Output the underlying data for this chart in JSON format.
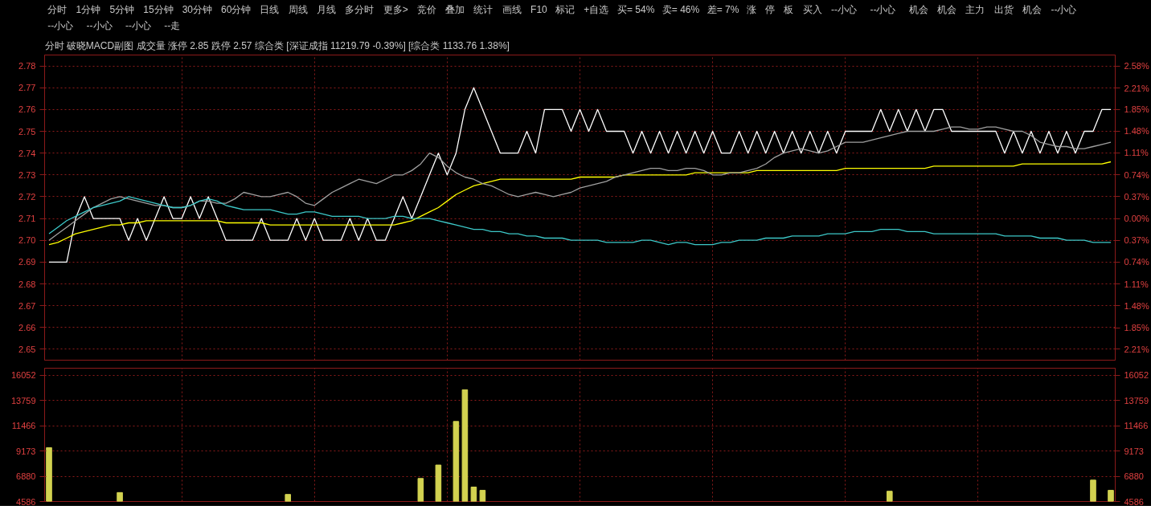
{
  "chart_data": [
    {
      "type": "line",
      "title": "分时 破晓MACD副图 成交量 涨停 2.85 跌停 2.57 综合类 [深证成指 11219.79 -0.39%] [综合类 1133.76 1.38%]",
      "annotations": [
        "分时",
        "1分钟",
        "5分钟",
        "15分钟",
        "30分钟",
        "60分钟",
        "日线",
        "周线",
        "月线",
        "多分时",
        "更多>",
        "竞价",
        "叠加",
        "统计",
        "画线",
        "F10",
        "标记",
        "+自选",
        "买= 54%",
        "卖= 46%",
        "差= 7%",
        "涨",
        "停",
        "板",
        "买入",
        "--小心",
        "--小心",
        "机会",
        "机会",
        "主力",
        "出货",
        "机会",
        "--小心",
        "--小心",
        "--小心",
        "--小心",
        "--走"
      ],
      "categories": [
        null,
        null,
        null,
        null,
        null,
        null,
        null,
        null,
        null,
        null,
        null,
        null,
        null,
        null,
        null,
        null,
        null,
        null,
        null,
        null,
        null,
        null,
        null,
        null,
        null,
        null,
        null,
        null,
        null,
        null,
        null,
        null,
        null,
        null,
        null,
        null,
        null,
        null,
        null,
        null,
        null,
        null,
        null,
        null,
        null,
        null,
        null,
        null,
        null,
        null,
        null,
        null,
        null,
        null,
        null,
        null,
        null,
        null,
        null,
        null,
        null,
        null,
        null,
        null,
        null,
        null,
        null,
        null,
        null,
        null,
        null,
        null,
        null,
        null,
        null,
        null,
        null,
        null,
        null,
        null,
        null,
        null,
        null,
        null,
        null,
        null,
        null,
        null,
        null,
        null,
        null,
        null,
        null,
        null,
        null,
        null,
        null,
        null,
        null,
        null,
        null,
        null,
        null,
        null,
        null,
        null,
        null,
        null,
        null,
        null,
        null,
        null,
        null,
        null,
        null,
        null,
        null,
        null,
        null,
        null,
        null
      ],
      "ylim": [
        2.645,
        2.785
      ],
      "yticks": [
        2.65,
        2.66,
        2.67,
        2.68,
        2.69,
        {
          "value": 2.7,
          "label": "2.70"
        },
        2.71,
        2.72,
        2.73,
        2.74,
        2.75,
        2.76,
        2.77,
        2.78
      ],
      "y2lim": [
        -2.399,
        2.768
      ],
      "y2ticks": [
        {
          "value": -2.21,
          "label": "2.21%"
        },
        {
          "value": -1.85,
          "label": "1.85%"
        },
        {
          "value": -1.48,
          "label": "1.48%"
        },
        {
          "value": -1.11,
          "label": "1.11%"
        },
        {
          "value": -0.74,
          "label": "0.74%"
        },
        {
          "value": -0.37,
          "label": "0.37%"
        },
        {
          "value": 0,
          "label": "0.00%"
        },
        {
          "value": 0.37,
          "label": "0.37%"
        },
        {
          "value": 0.74,
          "label": "0.74%"
        },
        {
          "value": 1.11,
          "label": "1.11%"
        },
        {
          "value": 1.48,
          "label": "1.48%"
        },
        {
          "value": 1.85,
          "label": "1.85%"
        },
        {
          "value": 2.21,
          "label": "2.21%"
        },
        {
          "value": 2.58,
          "label": "2.58%"
        }
      ],
      "grid": true,
      "series": [
        {
          "color": "#ffffff",
          "values": [
            2.69,
            2.69,
            2.69,
            2.71,
            2.72,
            2.71,
            2.71,
            2.71,
            2.71,
            2.7,
            2.71,
            2.7,
            2.71,
            2.72,
            2.71,
            2.71,
            2.72,
            2.71,
            2.72,
            2.71,
            2.7,
            2.7,
            2.7,
            2.7,
            2.71,
            2.7,
            2.7,
            2.7,
            2.71,
            2.7,
            2.71,
            2.7,
            2.7,
            2.7,
            2.71,
            2.7,
            2.71,
            2.7,
            2.7,
            2.71,
            2.72,
            2.71,
            2.72,
            2.73,
            2.74,
            2.73,
            2.74,
            2.76,
            2.77,
            2.76,
            2.75,
            2.74,
            2.74,
            2.74,
            2.75,
            2.74,
            2.76,
            2.76,
            2.76,
            2.75,
            2.76,
            2.75,
            2.76,
            2.75,
            2.75,
            2.75,
            2.74,
            2.75,
            2.74,
            2.75,
            2.74,
            2.75,
            2.74,
            2.75,
            2.74,
            2.75,
            2.74,
            2.74,
            2.75,
            2.74,
            2.75,
            2.74,
            2.75,
            2.74,
            2.75,
            2.74,
            2.75,
            2.74,
            2.75,
            2.74,
            2.75,
            2.75,
            2.75,
            2.75,
            2.76,
            2.75,
            2.76,
            2.75,
            2.76,
            2.75,
            2.76,
            2.76,
            2.75,
            2.75,
            2.75,
            2.75,
            2.75,
            2.75,
            2.74,
            2.75,
            2.74,
            2.75,
            2.74,
            2.75,
            2.74,
            2.75,
            2.74,
            2.75,
            2.75,
            2.76,
            2.76
          ]
        },
        {
          "color": "#ffff00",
          "values": [
            2.698,
            2.699,
            2.701,
            2.703,
            2.704,
            2.705,
            2.706,
            2.707,
            2.707,
            2.708,
            2.708,
            2.709,
            2.709,
            2.709,
            2.709,
            2.709,
            2.709,
            2.709,
            2.709,
            2.709,
            2.708,
            2.708,
            2.708,
            2.708,
            2.708,
            2.707,
            2.707,
            2.707,
            2.707,
            2.707,
            2.707,
            2.707,
            2.707,
            2.707,
            2.707,
            2.707,
            2.707,
            2.707,
            2.707,
            2.707,
            2.708,
            2.709,
            2.711,
            2.713,
            2.715,
            2.718,
            2.721,
            2.723,
            2.725,
            2.726,
            2.727,
            2.728,
            2.728,
            2.728,
            2.728,
            2.728,
            2.728,
            2.728,
            2.728,
            2.728,
            2.729,
            2.729,
            2.729,
            2.729,
            2.729,
            2.73,
            2.73,
            2.73,
            2.73,
            2.73,
            2.73,
            2.73,
            2.73,
            2.731,
            2.731,
            2.731,
            2.731,
            2.731,
            2.731,
            2.731,
            2.732,
            2.732,
            2.732,
            2.732,
            2.732,
            2.732,
            2.732,
            2.732,
            2.732,
            2.732,
            2.733,
            2.733,
            2.733,
            2.733,
            2.733,
            2.733,
            2.733,
            2.733,
            2.733,
            2.733,
            2.734,
            2.734,
            2.734,
            2.734,
            2.734,
            2.734,
            2.734,
            2.734,
            2.734,
            2.734,
            2.735,
            2.735,
            2.735,
            2.735,
            2.735,
            2.735,
            2.735,
            2.735,
            2.735,
            2.735,
            2.736
          ]
        },
        {
          "color": "#a0a0a0",
          "values": [
            2.7,
            2.703,
            2.706,
            2.709,
            2.712,
            2.715,
            2.717,
            2.719,
            2.72,
            2.719,
            2.718,
            2.717,
            2.716,
            2.716,
            2.715,
            2.715,
            2.716,
            2.718,
            2.718,
            2.717,
            2.717,
            2.719,
            2.722,
            2.721,
            2.72,
            2.72,
            2.721,
            2.722,
            2.72,
            2.717,
            2.716,
            2.719,
            2.722,
            2.724,
            2.726,
            2.728,
            2.727,
            2.726,
            2.728,
            2.73,
            2.73,
            2.732,
            2.735,
            2.74,
            2.738,
            2.734,
            2.731,
            2.729,
            2.728,
            2.726,
            2.725,
            2.723,
            2.721,
            2.72,
            2.721,
            2.722,
            2.721,
            2.72,
            2.721,
            2.722,
            2.724,
            2.725,
            2.726,
            2.727,
            2.729,
            2.73,
            2.731,
            2.732,
            2.733,
            2.733,
            2.732,
            2.732,
            2.733,
            2.733,
            2.732,
            2.73,
            2.73,
            2.731,
            2.731,
            2.732,
            2.733,
            2.735,
            2.738,
            2.74,
            2.741,
            2.742,
            2.741,
            2.74,
            2.741,
            2.743,
            2.745,
            2.745,
            2.745,
            2.746,
            2.747,
            2.748,
            2.749,
            2.75,
            2.75,
            2.75,
            2.75,
            2.751,
            2.752,
            2.752,
            2.751,
            2.751,
            2.752,
            2.752,
            2.751,
            2.75,
            2.75,
            2.748,
            2.745,
            2.744,
            2.743,
            2.743,
            2.742,
            2.742,
            2.743,
            2.744,
            2.745
          ]
        },
        {
          "color": "#3cc8c8",
          "values": [
            2.703,
            2.706,
            2.709,
            2.711,
            2.713,
            2.715,
            2.716,
            2.717,
            2.718,
            2.72,
            2.719,
            2.718,
            2.717,
            2.716,
            2.715,
            2.715,
            2.716,
            2.718,
            2.719,
            2.718,
            2.716,
            2.715,
            2.714,
            2.714,
            2.714,
            2.714,
            2.713,
            2.712,
            2.712,
            2.713,
            2.713,
            2.712,
            2.711,
            2.711,
            2.711,
            2.711,
            2.71,
            2.71,
            2.71,
            2.711,
            2.711,
            2.71,
            2.71,
            2.71,
            2.709,
            2.708,
            2.707,
            2.706,
            2.705,
            2.705,
            2.704,
            2.704,
            2.703,
            2.703,
            2.702,
            2.702,
            2.701,
            2.701,
            2.701,
            2.7,
            2.7,
            2.7,
            2.7,
            2.699,
            2.699,
            2.699,
            2.699,
            2.7,
            2.7,
            2.699,
            2.698,
            2.699,
            2.699,
            2.698,
            2.698,
            2.698,
            2.699,
            2.699,
            2.7,
            2.7,
            2.7,
            2.701,
            2.701,
            2.701,
            2.702,
            2.702,
            2.702,
            2.702,
            2.703,
            2.703,
            2.703,
            2.704,
            2.704,
            2.704,
            2.705,
            2.705,
            2.705,
            2.704,
            2.704,
            2.704,
            2.703,
            2.703,
            2.703,
            2.703,
            2.703,
            2.703,
            2.703,
            2.703,
            2.702,
            2.702,
            2.702,
            2.702,
            2.701,
            2.701,
            2.701,
            2.7,
            2.7,
            2.7,
            2.699,
            2.699,
            2.699
          ]
        }
      ]
    },
    {
      "type": "bar",
      "color": "#d2d250",
      "categories": [
        null,
        null,
        null,
        null,
        null,
        null,
        null,
        null,
        null,
        null,
        null,
        null,
        null,
        null,
        null,
        null,
        null,
        null,
        null,
        null,
        null,
        null,
        null,
        null,
        null,
        null,
        null,
        null,
        null,
        null,
        null,
        null,
        null,
        null,
        null,
        null,
        null,
        null,
        null,
        null,
        null,
        null,
        null,
        null,
        null,
        null,
        null,
        null,
        null,
        null,
        null,
        null,
        null,
        null,
        null,
        null,
        null,
        null,
        null,
        null,
        null,
        null,
        null,
        null,
        null,
        null,
        null,
        null,
        null,
        null,
        null,
        null,
        null,
        null,
        null,
        null,
        null,
        null,
        null,
        null,
        null,
        null,
        null,
        null,
        null,
        null,
        null,
        null,
        null,
        null,
        null,
        null,
        null,
        null,
        null,
        null,
        null,
        null,
        null,
        null,
        null,
        null,
        null,
        null,
        null,
        null,
        null,
        null,
        null,
        null,
        null,
        null,
        null,
        null,
        null,
        null,
        null,
        null,
        null,
        null,
        null
      ],
      "values": [
        9480,
        null,
        null,
        null,
        null,
        null,
        null,
        null,
        5400,
        null,
        null,
        null,
        null,
        null,
        null,
        null,
        null,
        null,
        null,
        null,
        null,
        null,
        null,
        null,
        null,
        null,
        null,
        5230,
        null,
        null,
        null,
        null,
        null,
        null,
        null,
        null,
        null,
        null,
        null,
        null,
        null,
        null,
        6680,
        null,
        7900,
        null,
        11860,
        14740,
        5900,
        5600,
        null,
        null,
        null,
        null,
        null,
        null,
        null,
        null,
        null,
        null,
        null,
        null,
        null,
        null,
        null,
        null,
        null,
        null,
        null,
        null,
        null,
        null,
        null,
        null,
        null,
        null,
        null,
        null,
        null,
        null,
        null,
        null,
        null,
        null,
        null,
        null,
        null,
        null,
        null,
        null,
        null,
        null,
        null,
        null,
        null,
        5520,
        null,
        null,
        null,
        null,
        null,
        null,
        null,
        null,
        null,
        null,
        null,
        null,
        null,
        null,
        null,
        null,
        null,
        null,
        null,
        null,
        null,
        null,
        6530,
        null,
        5600
      ],
      "ylim": [
        4586,
        16700
      ],
      "yticks": [
        4586,
        6880,
        9173,
        11466,
        13759,
        16052
      ],
      "y2lim": [
        4586,
        16700
      ],
      "y2ticks": [
        4586,
        6880,
        9173,
        11466,
        13759,
        16052
      ],
      "grid": true
    }
  ]
}
